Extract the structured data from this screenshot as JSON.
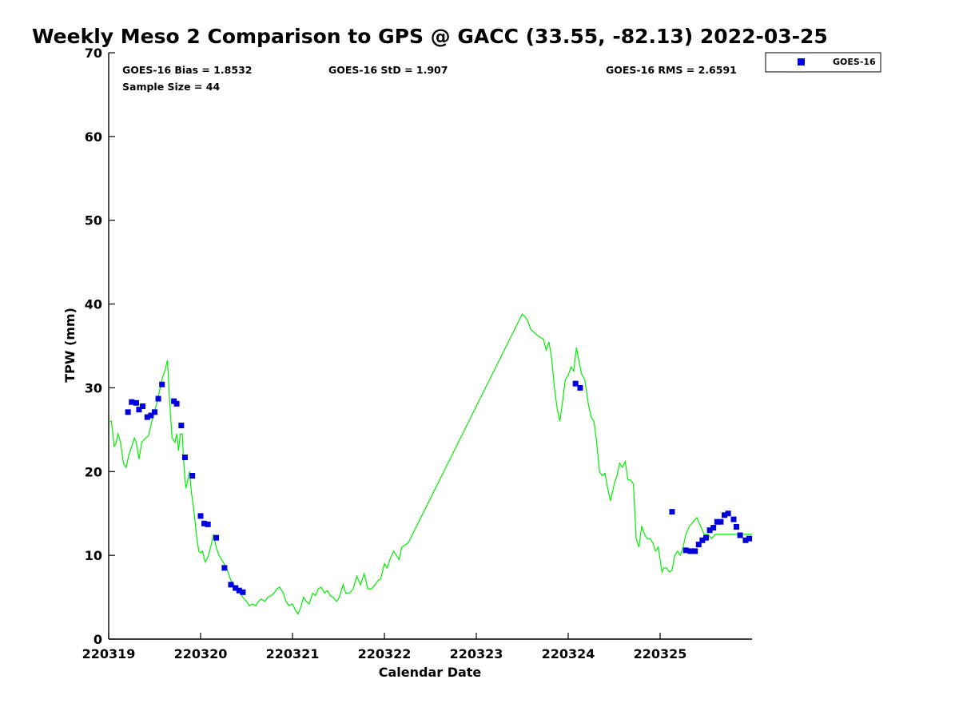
{
  "chart_data": {
    "type": "scatter",
    "title": "Weekly Meso 2 Comparison to GPS @ GACC (33.55, -82.13) 2022-03-25",
    "xlabel": "Calendar Date",
    "ylabel": "TPW (mm)",
    "xlim": [
      0,
      7
    ],
    "ylim": [
      0,
      70
    ],
    "x_ticks": [
      0,
      1,
      2,
      3,
      4,
      5,
      6
    ],
    "x_tick_labels": [
      "220319",
      "220320",
      "220321",
      "220322",
      "220323",
      "220324",
      "220325"
    ],
    "y_ticks": [
      0,
      10,
      20,
      30,
      40,
      50,
      60,
      70
    ],
    "y_tick_labels": [
      "0",
      "10",
      "20",
      "30",
      "40",
      "50",
      "60",
      "70"
    ],
    "x_unit": "days since 2022-03-19 00Z",
    "grid": false,
    "legend_position": "top-right",
    "stats": {
      "bias": "GOES-16 Bias = 1.8532",
      "std": "GOES-16 StD = 1.907",
      "rms": "GOES-16 RMS = 2.6591",
      "sample": "Sample Size = 44"
    },
    "series": [
      {
        "name": "GPS",
        "kind": "line",
        "color": "#00ee00",
        "points": [
          [
            0.0,
            26.1
          ],
          [
            0.03,
            26.0
          ],
          [
            0.06,
            23.0
          ],
          [
            0.08,
            23.4
          ],
          [
            0.1,
            24.5
          ],
          [
            0.13,
            23.5
          ],
          [
            0.16,
            21.0
          ],
          [
            0.19,
            20.5
          ],
          [
            0.22,
            22.0
          ],
          [
            0.25,
            23.0
          ],
          [
            0.28,
            24.0
          ],
          [
            0.3,
            23.5
          ],
          [
            0.33,
            21.5
          ],
          [
            0.36,
            23.5
          ],
          [
            0.4,
            24.0
          ],
          [
            0.43,
            24.2
          ],
          [
            0.46,
            25.5
          ],
          [
            0.49,
            27.0
          ],
          [
            0.52,
            28.0
          ],
          [
            0.55,
            29.5
          ],
          [
            0.58,
            31.0
          ],
          [
            0.61,
            32.0
          ],
          [
            0.64,
            33.3
          ],
          [
            0.66,
            29.0
          ],
          [
            0.69,
            24.0
          ],
          [
            0.72,
            23.5
          ],
          [
            0.74,
            24.5
          ],
          [
            0.76,
            22.5
          ],
          [
            0.78,
            24.5
          ],
          [
            0.8,
            24.5
          ],
          [
            0.82,
            20.5
          ],
          [
            0.84,
            18.0
          ],
          [
            0.86,
            19.0
          ],
          [
            0.88,
            20.0
          ],
          [
            0.9,
            17.5
          ],
          [
            0.92,
            16.0
          ],
          [
            0.94,
            14.0
          ],
          [
            0.96,
            12.0
          ],
          [
            0.98,
            10.5
          ],
          [
            1.0,
            10.3
          ],
          [
            1.02,
            10.5
          ],
          [
            1.05,
            9.2
          ],
          [
            1.08,
            9.8
          ],
          [
            1.11,
            11.0
          ],
          [
            1.14,
            12.5
          ],
          [
            1.17,
            11.0
          ],
          [
            1.2,
            10.0
          ],
          [
            1.23,
            9.5
          ],
          [
            1.27,
            8.7
          ],
          [
            1.3,
            8.0
          ],
          [
            1.33,
            7.0
          ],
          [
            1.36,
            6.5
          ],
          [
            1.4,
            5.8
          ],
          [
            1.43,
            5.5
          ],
          [
            1.46,
            5.0
          ],
          [
            1.5,
            4.5
          ],
          [
            1.53,
            4.0
          ],
          [
            1.56,
            4.2
          ],
          [
            1.6,
            4.0
          ],
          [
            1.63,
            4.5
          ],
          [
            1.66,
            4.8
          ],
          [
            1.7,
            4.5
          ],
          [
            1.73,
            5.0
          ],
          [
            1.77,
            5.2
          ],
          [
            1.8,
            5.5
          ],
          [
            1.83,
            6.0
          ],
          [
            1.86,
            6.2
          ],
          [
            1.9,
            5.5
          ],
          [
            1.93,
            4.5
          ],
          [
            1.96,
            4.0
          ],
          [
            2.0,
            4.2
          ],
          [
            2.03,
            3.5
          ],
          [
            2.06,
            3.0
          ],
          [
            2.09,
            3.8
          ],
          [
            2.12,
            5.0
          ],
          [
            2.15,
            4.5
          ],
          [
            2.18,
            4.2
          ],
          [
            2.22,
            5.5
          ],
          [
            2.25,
            5.2
          ],
          [
            2.28,
            6.0
          ],
          [
            2.31,
            6.2
          ],
          [
            2.35,
            5.5
          ],
          [
            2.38,
            5.8
          ],
          [
            2.41,
            5.2
          ],
          [
            2.44,
            5.0
          ],
          [
            2.48,
            4.5
          ],
          [
            2.51,
            5.0
          ],
          [
            2.55,
            6.5
          ],
          [
            2.58,
            5.5
          ],
          [
            2.62,
            5.5
          ],
          [
            2.66,
            6.0
          ],
          [
            2.7,
            7.5
          ],
          [
            2.74,
            6.5
          ],
          [
            2.78,
            7.8
          ],
          [
            2.82,
            6.0
          ],
          [
            2.86,
            6.0
          ],
          [
            2.9,
            6.5
          ],
          [
            2.93,
            7.0
          ],
          [
            2.96,
            7.2
          ],
          [
            3.0,
            9.0
          ],
          [
            3.03,
            8.5
          ],
          [
            3.06,
            9.5
          ],
          [
            3.1,
            10.5
          ],
          [
            3.13,
            10.0
          ],
          [
            3.16,
            9.5
          ],
          [
            3.19,
            11.0
          ],
          [
            3.22,
            11.2
          ],
          [
            3.26,
            11.5
          ],
          [
            4.5,
            38.8
          ],
          [
            4.53,
            38.5
          ],
          [
            4.56,
            38.0
          ],
          [
            4.59,
            37.0
          ],
          [
            4.63,
            36.6
          ],
          [
            4.66,
            36.3
          ],
          [
            4.7,
            36.0
          ],
          [
            4.73,
            35.8
          ],
          [
            4.76,
            34.5
          ],
          [
            4.79,
            35.5
          ],
          [
            4.82,
            33.5
          ],
          [
            4.85,
            30.0
          ],
          [
            4.88,
            27.5
          ],
          [
            4.91,
            26.0
          ],
          [
            4.94,
            28.5
          ],
          [
            4.97,
            31.0
          ],
          [
            5.0,
            31.5
          ],
          [
            5.03,
            32.5
          ],
          [
            5.06,
            32.0
          ],
          [
            5.09,
            34.8
          ],
          [
            5.12,
            33.0
          ],
          [
            5.15,
            31.5
          ],
          [
            5.18,
            31.0
          ],
          [
            5.22,
            28.0
          ],
          [
            5.25,
            26.5
          ],
          [
            5.28,
            26.0
          ],
          [
            5.31,
            23.5
          ],
          [
            5.34,
            20.0
          ],
          [
            5.37,
            19.5
          ],
          [
            5.4,
            19.8
          ],
          [
            5.43,
            18.0
          ],
          [
            5.46,
            16.5
          ],
          [
            5.5,
            18.5
          ],
          [
            5.53,
            19.5
          ],
          [
            5.56,
            21.0
          ],
          [
            5.59,
            20.5
          ],
          [
            5.62,
            21.2
          ],
          [
            5.65,
            19.0
          ],
          [
            5.68,
            19.0
          ],
          [
            5.71,
            18.5
          ],
          [
            5.74,
            12.0
          ],
          [
            5.77,
            11.0
          ],
          [
            5.8,
            13.5
          ],
          [
            5.83,
            12.5
          ],
          [
            5.86,
            12.0
          ],
          [
            5.89,
            12.0
          ],
          [
            5.92,
            11.5
          ],
          [
            5.95,
            10.5
          ],
          [
            5.98,
            11.0
          ],
          [
            6.0,
            9.5
          ],
          [
            6.02,
            8.0
          ],
          [
            6.04,
            8.5
          ],
          [
            6.07,
            8.5
          ],
          [
            6.1,
            8.0
          ],
          [
            6.13,
            8.2
          ],
          [
            6.16,
            10.0
          ],
          [
            6.19,
            10.5
          ],
          [
            6.22,
            10.0
          ],
          [
            6.25,
            11.0
          ],
          [
            6.28,
            12.5
          ],
          [
            6.32,
            13.5
          ],
          [
            6.36,
            14.0
          ],
          [
            6.4,
            14.5
          ],
          [
            6.44,
            13.5
          ],
          [
            6.48,
            12.5
          ],
          [
            6.52,
            12.5
          ],
          [
            6.56,
            12.0
          ],
          [
            6.6,
            12.5
          ],
          [
            6.63,
            12.5
          ],
          [
            6.66,
            12.5
          ],
          [
            6.7,
            12.5
          ],
          [
            7.0,
            12.5
          ]
        ]
      },
      {
        "name": "GOES-16",
        "kind": "scatter",
        "color": "#0000dd",
        "points": [
          [
            0.21,
            27.1
          ],
          [
            0.25,
            28.3
          ],
          [
            0.3,
            28.2
          ],
          [
            0.33,
            27.4
          ],
          [
            0.37,
            27.8
          ],
          [
            0.42,
            26.5
          ],
          [
            0.46,
            26.7
          ],
          [
            0.5,
            27.1
          ],
          [
            0.54,
            28.7
          ],
          [
            0.58,
            30.4
          ],
          [
            0.71,
            28.4
          ],
          [
            0.74,
            28.1
          ],
          [
            0.79,
            25.5
          ],
          [
            0.83,
            21.7
          ],
          [
            0.91,
            19.5
          ],
          [
            1.0,
            14.7
          ],
          [
            1.04,
            13.8
          ],
          [
            1.08,
            13.7
          ],
          [
            1.17,
            12.1
          ],
          [
            1.26,
            8.5
          ],
          [
            1.33,
            6.5
          ],
          [
            1.38,
            6.1
          ],
          [
            1.42,
            5.8
          ],
          [
            1.46,
            5.6
          ],
          [
            5.08,
            30.5
          ],
          [
            5.13,
            30.0
          ],
          [
            6.13,
            15.2
          ],
          [
            6.28,
            10.6
          ],
          [
            6.33,
            10.5
          ],
          [
            6.38,
            10.5
          ],
          [
            6.42,
            11.3
          ],
          [
            6.46,
            11.8
          ],
          [
            6.5,
            12.1
          ],
          [
            6.54,
            13.0
          ],
          [
            6.58,
            13.3
          ],
          [
            6.62,
            14.0
          ],
          [
            6.66,
            14.0
          ],
          [
            6.7,
            14.8
          ],
          [
            6.74,
            15.0
          ],
          [
            6.8,
            14.3
          ],
          [
            6.83,
            13.4
          ],
          [
            6.87,
            12.4
          ],
          [
            6.93,
            11.8
          ],
          [
            6.97,
            12.0
          ]
        ]
      }
    ]
  }
}
